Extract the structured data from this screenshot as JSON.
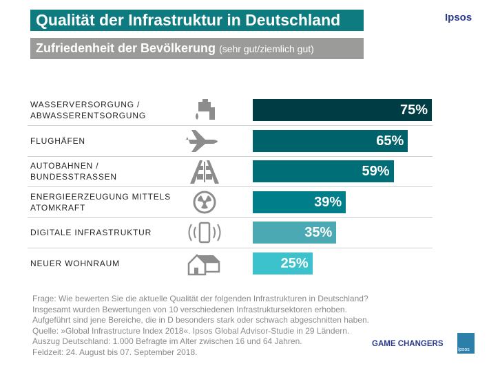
{
  "header": {
    "title": "Qualität der Infrastruktur in Deutschland",
    "subtitle_main": "Zufriedenheit der Bevölkerung",
    "subtitle_note": "(sehr gut/ziemlich gut)",
    "brand": "Ipsos"
  },
  "chart_data": {
    "type": "bar",
    "orientation": "horizontal",
    "xlim": [
      0,
      100
    ],
    "grid": false,
    "categories": [
      "WASSERVERSORGUNG / ABWASSERENTSORGUNG",
      "FLUGHÄFEN",
      "AUTOBAHNEN / BUNDESSTRASSEN",
      "ENERGIEERZEUGUNG MITTELS ATOMKRAFT",
      "DIGITALE INFRASTRUKTUR",
      "NEUER WOHNRAUM"
    ],
    "values": [
      75,
      65,
      59,
      39,
      35,
      25
    ],
    "data_labels": [
      "75%",
      "65%",
      "59%",
      "39%",
      "35%",
      "25%"
    ],
    "icons": [
      "faucet-icon",
      "airplane-icon",
      "highway-icon",
      "radiation-icon",
      "smartphone-signal-icon",
      "house-icon"
    ],
    "colors": [
      "#003c44",
      "#00626a",
      "#006e77",
      "#007f8a",
      "#4aa9b2",
      "#3cc2cc"
    ]
  },
  "notes": [
    "Frage: Wie bewerten Sie die aktuelle Qualität der folgenden Infrastrukturen in Deutschland?",
    "Insgesamt wurden Bewertungen von 10 verschiedenen Infrastruktursektoren erhoben.",
    "Aufgeführt sind jene Bereiche, die in D besonders stark oder schwach abgeschnitten haben.",
    "Quelle: »Global Infrastructure Index 2018«. Ipsos Global Advisor-Studie in 29 Ländern.",
    "Auszug Deutschland: 1.000 Befragte im Alter zwischen 16 und 64 Jahren.",
    "Feldzeit: 24. August bis 07. September 2018."
  ],
  "footer": {
    "slogan": "GAME CHANGERS",
    "logo_text": "Ipsos"
  }
}
